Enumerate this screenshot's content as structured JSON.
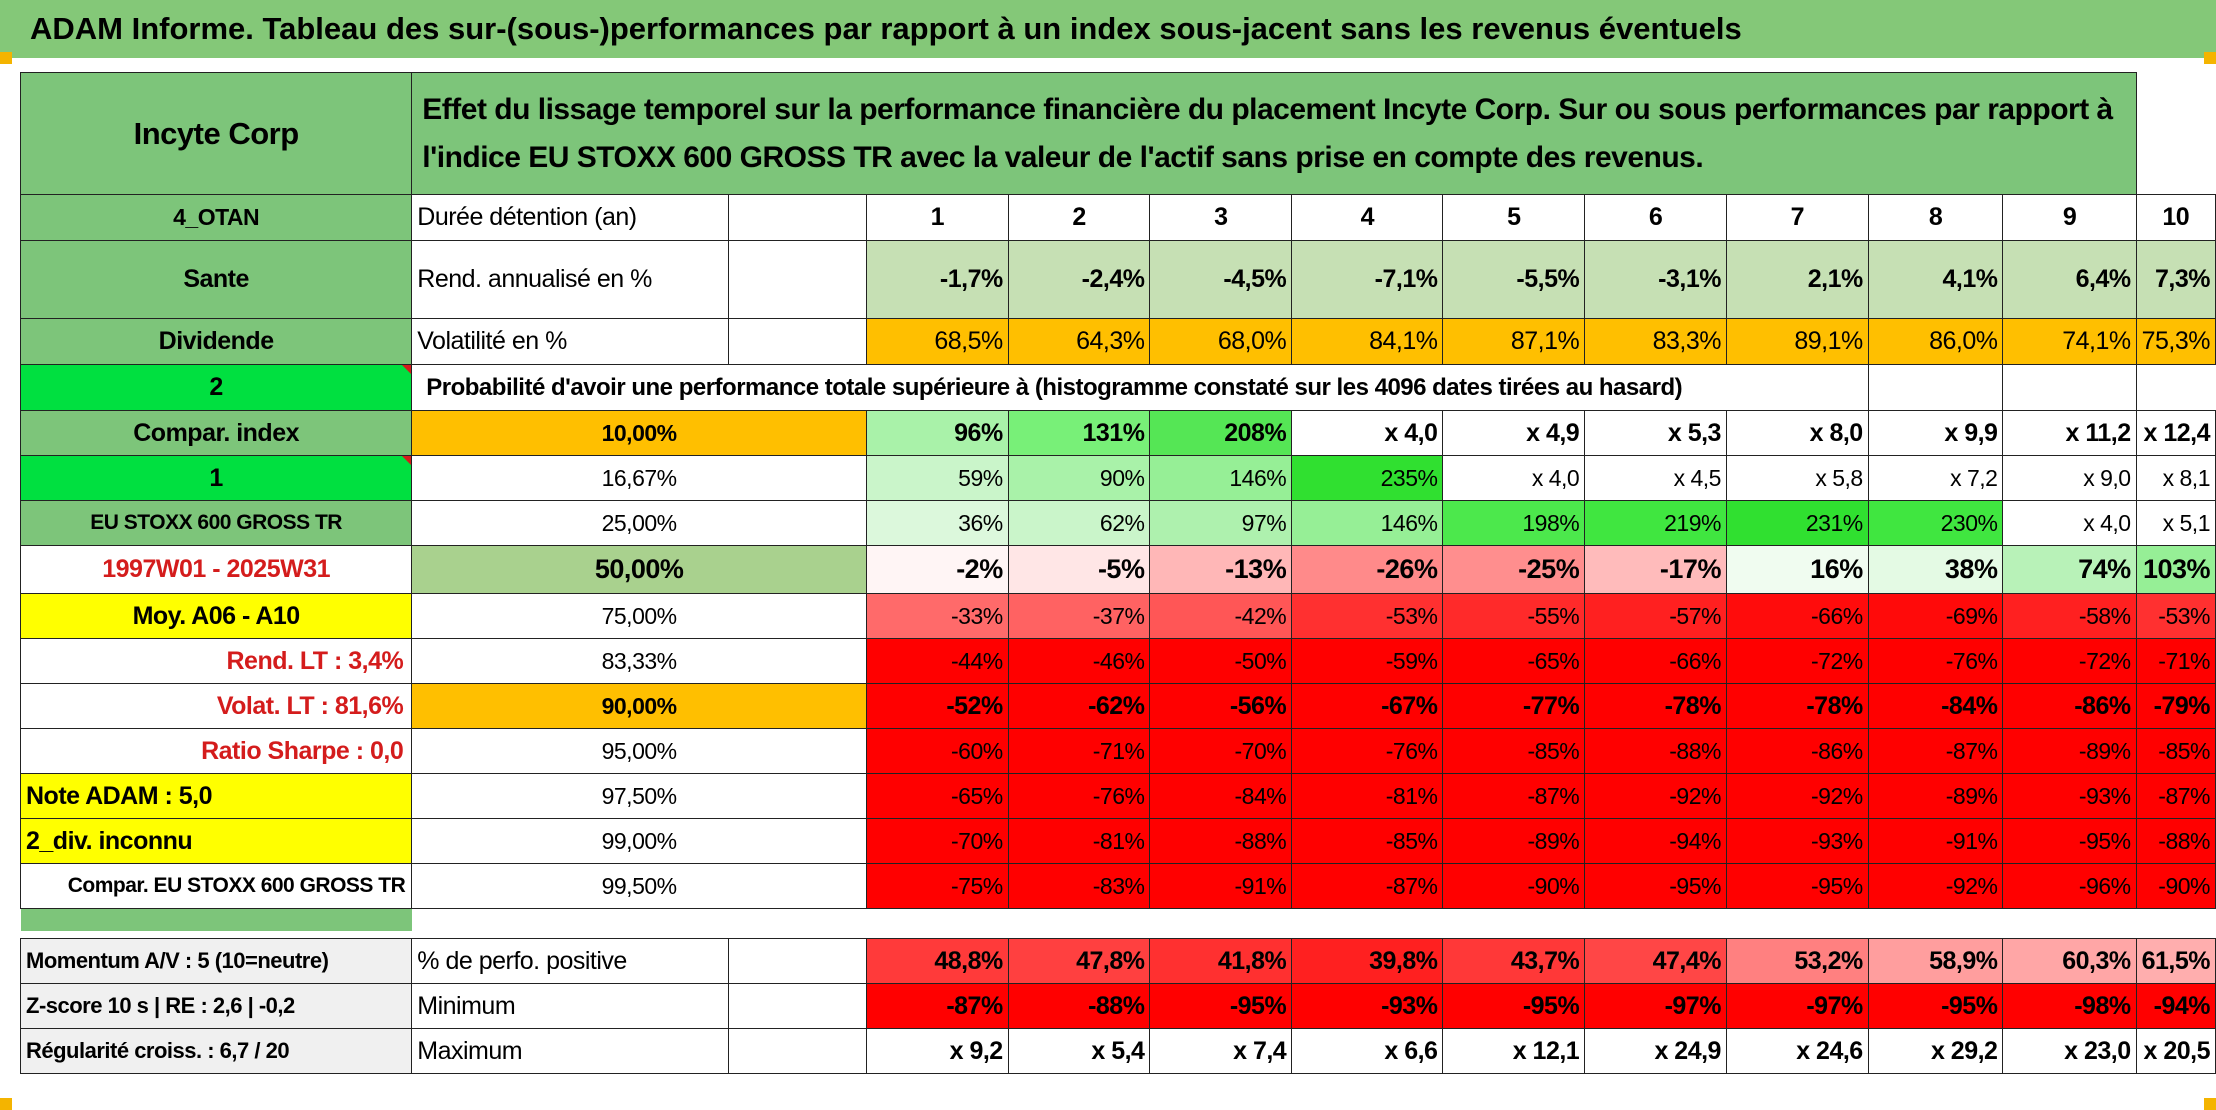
{
  "title": "ADAM Informe. Tableau des sur-(sous-)performances par rapport à un index sous-jacent sans les revenus éventuels",
  "left": {
    "name": "Incyte Corp",
    "code": "4_OTAN",
    "sector": "Sante",
    "dividend": "Dividende",
    "value_2": "2",
    "compar_index": "Compar. index",
    "value_1": "1",
    "index_name": "EU STOXX 600 GROSS TR",
    "period": "1997W01 - 2025W31",
    "moy": "Moy. A06 - A10",
    "rend_lt": "Rend. LT :   3,4%",
    "volat_lt": "Volat. LT :   81,6%",
    "sharpe": "Ratio Sharpe :    0,0",
    "note": "Note ADAM : 5,0",
    "div": "2_div. inconnu",
    "compar": "Compar. EU STOXX 600 GROSS TR",
    "momentum": "Momentum A/V : 5 (10=neutre)",
    "zscore": "Z-score 10 s | RE : 2,6 | -0,2",
    "regularite": "Régularité croiss. : 6,7 / 20"
  },
  "header_text": "Effet du lissage temporel sur la performance financière du placement Incyte Corp. Sur ou sous performances par rapport à l'indice EU STOXX 600 GROSS TR avec la valeur de l'actif sans prise en compte des revenus.",
  "labels": {
    "duree": "Durée détention (an)",
    "rend": "Rend. annualisé en %",
    "volat": "Volatilité en %",
    "proba": "Probabilité d'avoir une performance totale supérieure à (histogramme constaté sur les 4096 dates tirées au hasard)",
    "perfo": "% de perfo. positive",
    "minimum": "Minimum",
    "maximum": "Maximum"
  },
  "years": [
    "1",
    "2",
    "3",
    "4",
    "5",
    "6",
    "7",
    "8",
    "9",
    "10"
  ],
  "rend": [
    "-1,7%",
    "-2,4%",
    "-4,5%",
    "-7,1%",
    "-5,5%",
    "-3,1%",
    "2,1%",
    "4,1%",
    "6,4%",
    "7,3%"
  ],
  "volat": [
    "68,5%",
    "64,3%",
    "68,0%",
    "84,1%",
    "87,1%",
    "83,3%",
    "89,1%",
    "86,0%",
    "74,1%",
    "75,3%"
  ],
  "percentiles": [
    {
      "p": "10,00%",
      "v": [
        "96%",
        "131%",
        "208%",
        "x 4,0",
        "x 4,9",
        "x 5,3",
        "x 8,0",
        "x 9,9",
        "x 11,2",
        "x 12,4"
      ]
    },
    {
      "p": "16,67%",
      "v": [
        "59%",
        "90%",
        "146%",
        "235%",
        "x 4,0",
        "x 4,5",
        "x 5,8",
        "x 7,2",
        "x 9,0",
        "x 8,1"
      ]
    },
    {
      "p": "25,00%",
      "v": [
        "36%",
        "62%",
        "97%",
        "146%",
        "198%",
        "219%",
        "231%",
        "230%",
        "x 4,0",
        "x 5,1"
      ]
    },
    {
      "p": "50,00%",
      "v": [
        "-2%",
        "-5%",
        "-13%",
        "-26%",
        "-25%",
        "-17%",
        "16%",
        "38%",
        "74%",
        "103%"
      ]
    },
    {
      "p": "75,00%",
      "v": [
        "-33%",
        "-37%",
        "-42%",
        "-53%",
        "-55%",
        "-57%",
        "-66%",
        "-69%",
        "-58%",
        "-53%"
      ]
    },
    {
      "p": "83,33%",
      "v": [
        "-44%",
        "-46%",
        "-50%",
        "-59%",
        "-65%",
        "-66%",
        "-72%",
        "-76%",
        "-72%",
        "-71%"
      ]
    },
    {
      "p": "90,00%",
      "v": [
        "-52%",
        "-62%",
        "-56%",
        "-67%",
        "-77%",
        "-78%",
        "-78%",
        "-84%",
        "-86%",
        "-79%"
      ]
    },
    {
      "p": "95,00%",
      "v": [
        "-60%",
        "-71%",
        "-70%",
        "-76%",
        "-85%",
        "-88%",
        "-86%",
        "-87%",
        "-89%",
        "-85%"
      ]
    },
    {
      "p": "97,50%",
      "v": [
        "-65%",
        "-76%",
        "-84%",
        "-81%",
        "-87%",
        "-92%",
        "-92%",
        "-89%",
        "-93%",
        "-87%"
      ]
    },
    {
      "p": "99,00%",
      "v": [
        "-70%",
        "-81%",
        "-88%",
        "-85%",
        "-89%",
        "-94%",
        "-93%",
        "-91%",
        "-95%",
        "-88%"
      ]
    },
    {
      "p": "99,50%",
      "v": [
        "-75%",
        "-83%",
        "-91%",
        "-87%",
        "-90%",
        "-95%",
        "-95%",
        "-92%",
        "-96%",
        "-90%"
      ]
    }
  ],
  "perfo": [
    "48,8%",
    "47,8%",
    "41,8%",
    "39,8%",
    "43,7%",
    "47,4%",
    "53,2%",
    "58,9%",
    "60,3%",
    "61,5%"
  ],
  "minimum": [
    "-87%",
    "-88%",
    "-95%",
    "-93%",
    "-95%",
    "-97%",
    "-97%",
    "-95%",
    "-98%",
    "-94%"
  ],
  "maximum": [
    "x 9,2",
    "x 5,4",
    "x 7,4",
    "x 6,6",
    "x 12,1",
    "x 24,9",
    "x 24,6",
    "x 29,2",
    "x 23,0",
    "x 20,5"
  ],
  "colors": {
    "title_green": "#84c878",
    "label_green": "#7dc57a",
    "bright_green": "#00e040",
    "yellow": "#ffff00",
    "orange": "#ffbf00",
    "red": "#ff0000",
    "pale_green": "#c6e0b4",
    "text_red": "#d41c1c"
  }
}
